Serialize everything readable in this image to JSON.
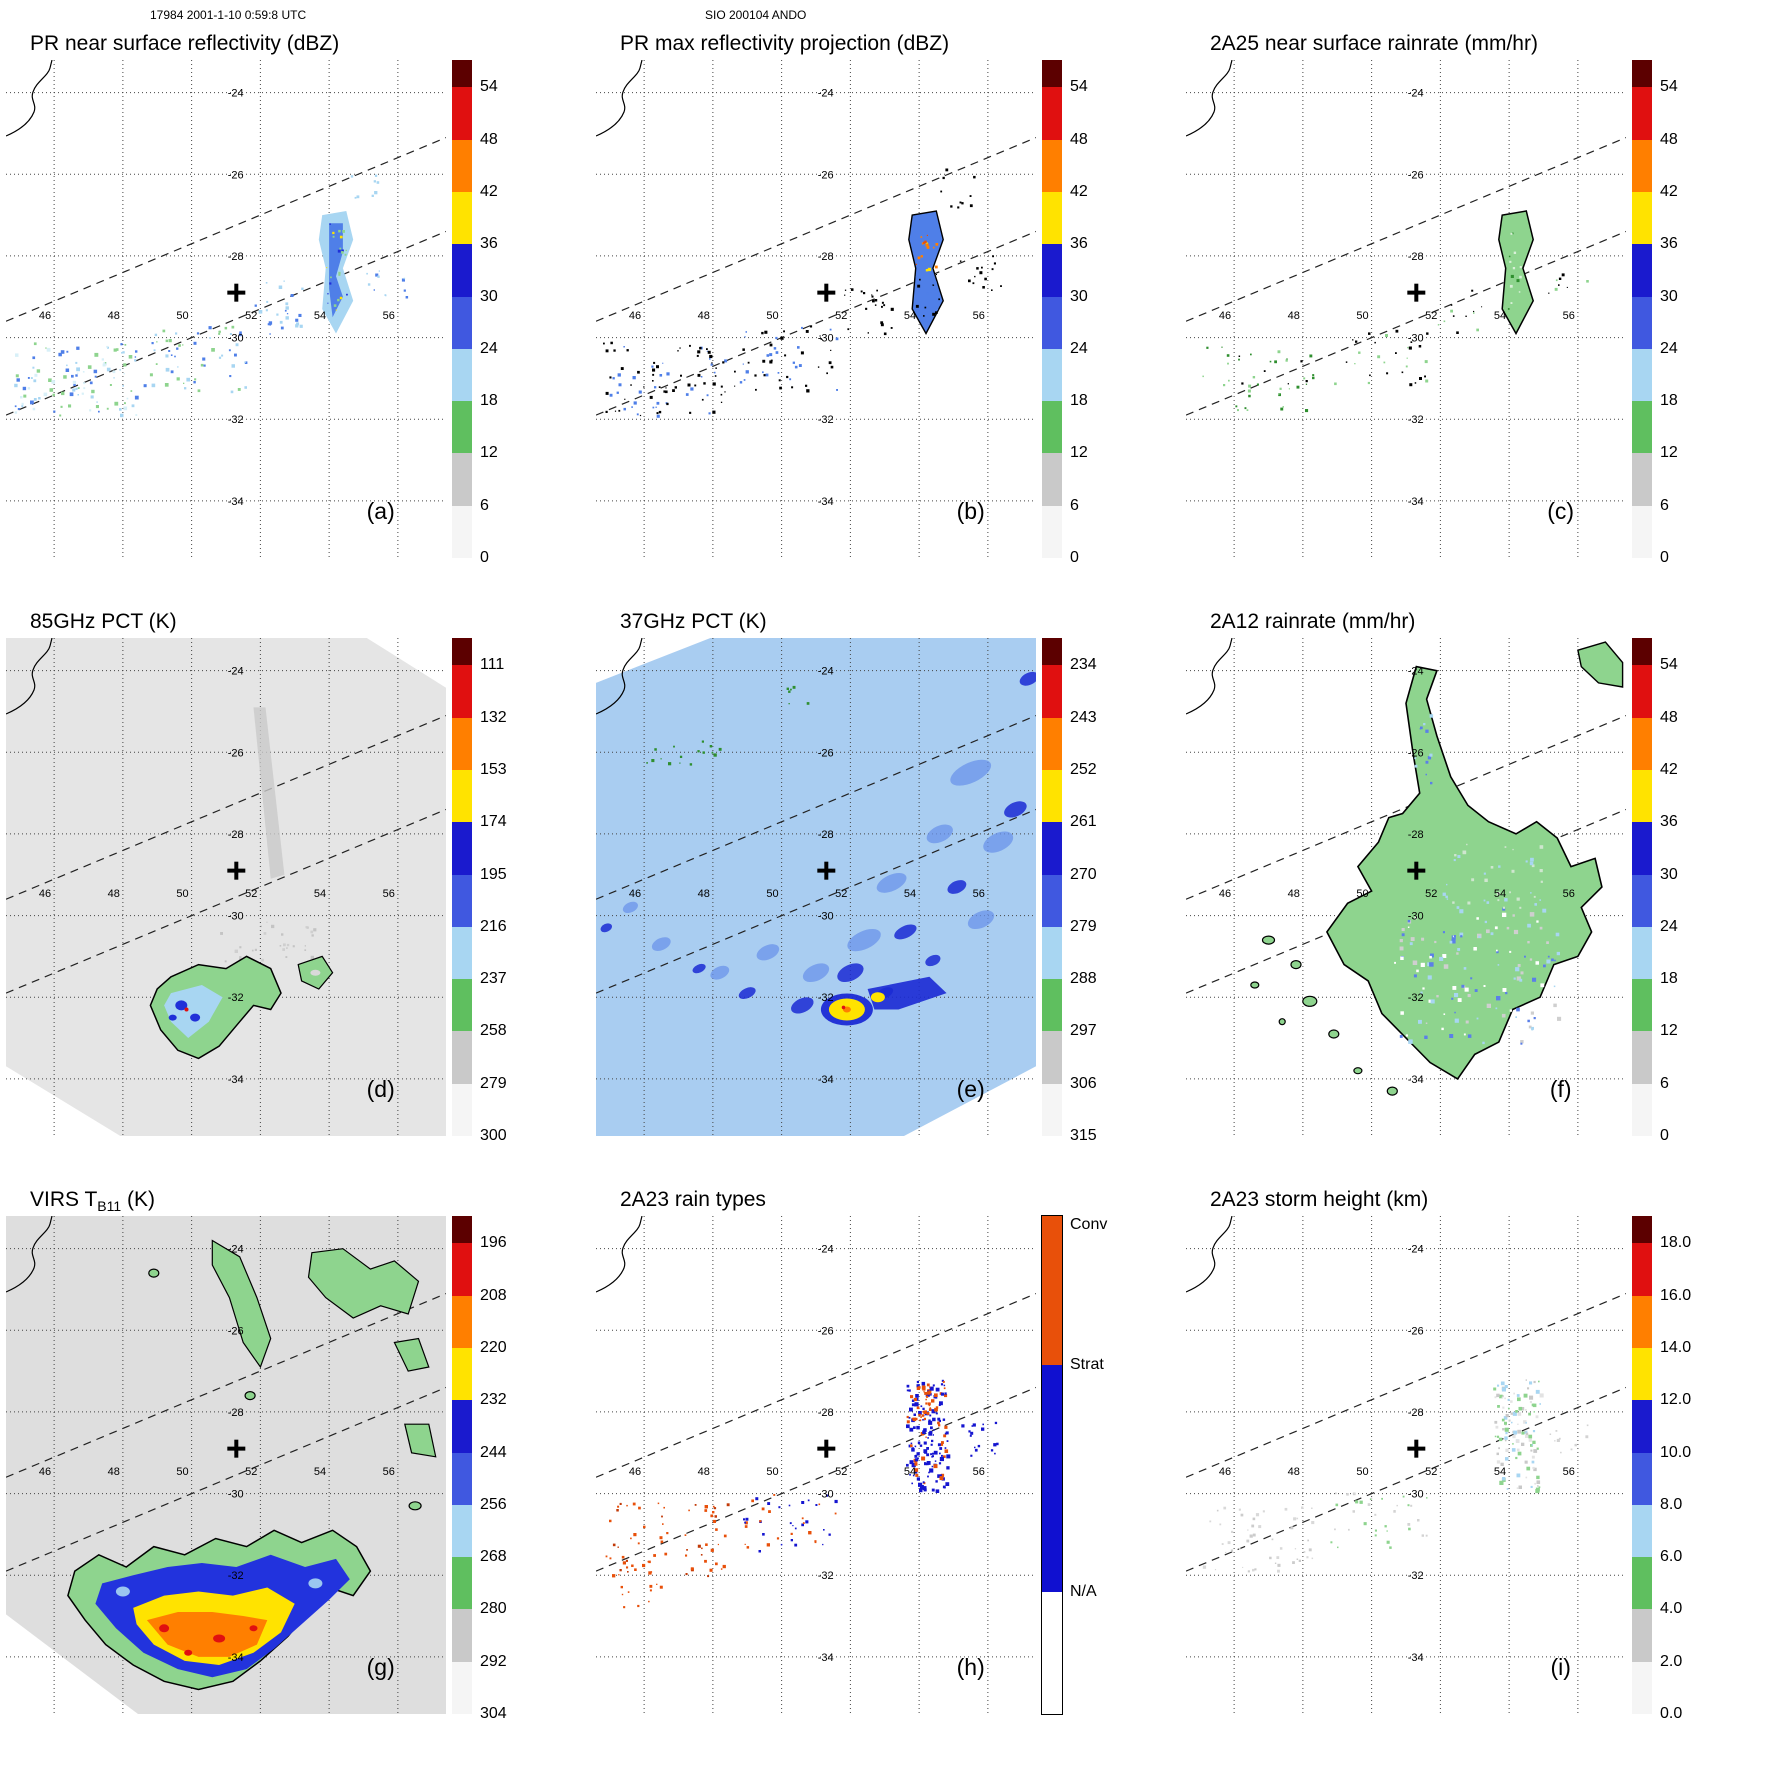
{
  "header": {
    "left": "17984 2001-1-10 0:59:8 UTC",
    "center": "SIO 200104 ANDO"
  },
  "grid": {
    "lon_labels": [
      "46",
      "48",
      "50",
      "52",
      "54",
      "56"
    ],
    "lat_labels": [
      "-24",
      "-26",
      "-28",
      "-30",
      "-32",
      "-34"
    ],
    "lons": [
      46,
      48,
      50,
      52,
      54,
      56
    ],
    "lats": [
      -24,
      -26,
      -28,
      -30,
      -32,
      -34
    ]
  },
  "palette": {
    "colorbar": {
      "cap": "#5c0000",
      "segments": [
        "#e01010",
        "#ff7f00",
        "#ffe300",
        "#1a1ace",
        "#4058e0",
        "#a8d6f2",
        "#5fbf5f",
        "#c9c9c9",
        "#f5f5f5"
      ],
      "raintype": {
        "conv": "#e8500a",
        "strat": "#1010d0",
        "na": "#ffffff"
      }
    },
    "map_colors": {
      "green": "#8ed48e",
      "dark_green": "#2f8f2f",
      "pale_blue": "#a8d6f2",
      "med_blue": "#4f7fe8",
      "deep_blue": "#2030d8",
      "yellow": "#ffe300",
      "orange": "#ff7f00",
      "red": "#e01010",
      "conv_orange": "#e8500a",
      "strat_blue": "#1515d0",
      "gray_swath": "#e5e5e5",
      "blue_swath": "#a9cdf1",
      "gray_virs": "#dedede",
      "black": "#000000"
    }
  },
  "panels": [
    {
      "id": "a",
      "letter": "(a)",
      "title": "PR near surface reflectivity (dBZ)",
      "colorbar": {
        "kind": "std",
        "labels": [
          "54",
          "48",
          "42",
          "36",
          "30",
          "24",
          "18",
          "12",
          "6",
          "0"
        ]
      }
    },
    {
      "id": "b",
      "letter": "(b)",
      "title": "PR max reflectivity projection (dBZ)",
      "colorbar": {
        "kind": "std",
        "labels": [
          "54",
          "48",
          "42",
          "36",
          "30",
          "24",
          "18",
          "12",
          "6",
          "0"
        ]
      }
    },
    {
      "id": "c",
      "letter": "(c)",
      "title": "2A25 near surface rainrate (mm/hr)",
      "colorbar": {
        "kind": "std",
        "labels": [
          "54",
          "48",
          "42",
          "36",
          "30",
          "24",
          "18",
          "12",
          "6",
          "0"
        ]
      }
    },
    {
      "id": "d",
      "letter": "(d)",
      "title": "85GHz PCT (K)",
      "colorbar": {
        "kind": "std",
        "labels": [
          "111",
          "132",
          "153",
          "174",
          "195",
          "216",
          "237",
          "258",
          "279",
          "300"
        ]
      }
    },
    {
      "id": "e",
      "letter": "(e)",
      "title": "37GHz PCT (K)",
      "colorbar": {
        "kind": "std",
        "labels": [
          "234",
          "243",
          "252",
          "261",
          "270",
          "279",
          "288",
          "297",
          "306",
          "315"
        ]
      }
    },
    {
      "id": "f",
      "letter": "(f)",
      "title": "2A12 rainrate (mm/hr)",
      "colorbar": {
        "kind": "std",
        "labels": [
          "54",
          "48",
          "42",
          "36",
          "30",
          "24",
          "18",
          "12",
          "6",
          "0"
        ]
      }
    },
    {
      "id": "g",
      "letter": "(g)",
      "title_prefix": "VIRS T",
      "title_sub": "B11",
      "title_suffix": " (K)",
      "colorbar": {
        "kind": "std",
        "labels": [
          "196",
          "208",
          "220",
          "232",
          "244",
          "256",
          "268",
          "280",
          "292",
          "304"
        ]
      }
    },
    {
      "id": "h",
      "letter": "(h)",
      "title": "2A23 rain types",
      "colorbar": {
        "kind": "raintype",
        "labels": [
          "Conv",
          "Strat",
          "N/A"
        ]
      }
    },
    {
      "id": "i",
      "letter": "(i)",
      "title": "2A23 storm height (km)",
      "colorbar": {
        "kind": "std",
        "labels": [
          "18.0",
          "16.0",
          "14.0",
          "12.0",
          "10.0",
          "8.0",
          "6.0",
          "4.0",
          "2.0",
          "0.0"
        ]
      }
    }
  ],
  "chart_data": [
    {
      "panel": "(a)",
      "type": "heatmap",
      "title": "PR near surface reflectivity (dBZ)",
      "units": "dBZ",
      "colorbar_ticks": [
        54,
        48,
        42,
        36,
        30,
        24,
        18,
        12,
        6,
        0
      ],
      "extent": {
        "lon": [
          46,
          56
        ],
        "lat": [
          -34,
          -24
        ]
      },
      "annotations": [
        "cross marker near 51.3E -28.9",
        "dashed PR swath edges",
        "coastline in upper-left"
      ],
      "description": "Scattered weak echoes (18-30 dBZ) along the narrow PR swath between 45-52E, -30 to -32; a north-south convective band of 24-36 dBZ near 54E between -27 and -30."
    },
    {
      "panel": "(b)",
      "type": "heatmap",
      "title": "PR max reflectivity projection (dBZ)",
      "units": "dBZ",
      "colorbar_ticks": [
        54,
        48,
        42,
        36,
        30,
        24,
        18,
        12,
        6,
        0
      ],
      "extent": {
        "lon": [
          46,
          56
        ],
        "lat": [
          -34,
          -24
        ]
      },
      "annotations": [
        "cross marker",
        "dashed swath edges",
        "coastline in upper-left"
      ],
      "description": "Same echo regions as (a) shown as black-outlined maxima; the band near 54E contains embedded orange/yellow cores (36-48 dBZ)."
    },
    {
      "panel": "(c)",
      "type": "heatmap",
      "title": "2A25 near surface rainrate (mm/hr)",
      "units": "mm/hr",
      "colorbar_ticks": [
        54,
        48,
        42,
        36,
        30,
        24,
        18,
        12,
        6,
        0
      ],
      "extent": {
        "lon": [
          46,
          56
        ],
        "lat": [
          -34,
          -24
        ]
      },
      "annotations": [
        "cross marker",
        "dashed swath edges",
        "coastline in upper-left"
      ],
      "description": "Light rain (green, ~6-18 mm/hr outlined in black) in the band near 54E and sparse specks along the swath."
    },
    {
      "panel": "(d)",
      "type": "heatmap",
      "title": "85GHz PCT (K)",
      "units": "K",
      "colorbar_ticks": [
        111,
        132,
        153,
        174,
        195,
        216,
        237,
        258,
        279,
        300
      ],
      "extent": {
        "lon": [
          46,
          56
        ],
        "lat": [
          -34,
          -24
        ]
      },
      "annotations": [
        "cross marker",
        "dashed PR swath edges",
        "coastline in upper-left"
      ],
      "description": "Wide TMI swath of warm PCT (gray ~260-300K) with a depressed-PCT feature near 50E -32.5 (green contour ~237K enclosing pale/deep blue ~195-216K) and a small outlined cell near 53.5E -31.5."
    },
    {
      "panel": "(e)",
      "type": "heatmap",
      "title": "37GHz PCT (K)",
      "units": "K",
      "colorbar_ticks": [
        234,
        243,
        252,
        261,
        270,
        279,
        288,
        297,
        306,
        315
      ],
      "extent": {
        "lon": [
          46,
          56
        ],
        "lat": [
          -34,
          -24
        ]
      },
      "annotations": [
        "cross marker",
        "dashed PR swath edges",
        "coastline in upper-left"
      ],
      "description": "Swath mostly pale blue (~279-288K) with deep blue patches (~270K) and a yellow minimum (~261K with orange core) near 52E -32.3; sparse green specks along the northwest edge."
    },
    {
      "panel": "(f)",
      "type": "heatmap",
      "title": "2A12 rainrate (mm/hr)",
      "units": "mm/hr",
      "colorbar_ticks": [
        54,
        48,
        42,
        36,
        30,
        24,
        18,
        12,
        6,
        0
      ],
      "extent": {
        "lon": [
          46,
          56
        ],
        "lat": [
          -34,
          -24
        ]
      },
      "annotations": [
        "cross marker",
        "dashed PR swath edges",
        "coastline in upper-left"
      ],
      "description": "Large black-outlined raining region (green ~0-6 mm/hr) covering 49-57E, -28 to -34 with a hooked arm extending to 51.5E -24; embedded pale/medium blue pixels (12-30 mm/hr); small outlined rain islands to the southwest and a patch in the upper-right corner."
    },
    {
      "panel": "(g)",
      "type": "heatmap",
      "title": "VIRS TB11 (K)",
      "units": "K",
      "colorbar_ticks": [
        196,
        208,
        220,
        232,
        244,
        256,
        268,
        280,
        292,
        304
      ],
      "extent": {
        "lon": [
          46,
          56
        ],
        "lat": [
          -34,
          -24
        ]
      },
      "annotations": [
        "cross marker",
        "dashed PR swath edges",
        "coastline in upper-left"
      ],
      "description": "Warm gray background (~280-304K) with black-contoured cold cloud patches (green ~268K) in the north and east, and a large cold storm shield in the south (blue ~244-256K surrounding yellow ~232K, orange ~220K and red cores ~208K) centered near 50E -33.5."
    },
    {
      "panel": "(h)",
      "type": "categorical-map",
      "title": "2A23 rain types",
      "units": "category",
      "categories": [
        "Conv",
        "Strat",
        "N/A"
      ],
      "extent": {
        "lon": [
          46,
          56
        ],
        "lat": [
          -34,
          -24
        ]
      },
      "annotations": [
        "cross marker",
        "dashed PR swath edges",
        "coastline in upper-left"
      ],
      "description": "Convective (orange) pixels scattered along the southwest part of the swath; the band near 54E is mostly stratiform (blue) with convective cells at its northern end."
    },
    {
      "panel": "(i)",
      "type": "heatmap",
      "title": "2A23 storm height (km)",
      "units": "km",
      "colorbar_ticks": [
        18.0,
        16.0,
        14.0,
        12.0,
        10.0,
        8.0,
        6.0,
        4.0,
        2.0,
        0.0
      ],
      "extent": {
        "lon": [
          46,
          56
        ],
        "lat": [
          -34,
          -24
        ]
      },
      "annotations": [
        "cross marker",
        "dashed PR swath edges",
        "coastline in upper-left"
      ],
      "description": "Shallow storm heights (gray ~2-4 km with green ~4-6 km pixels) in the band near 54E and faint echoes along the swath."
    }
  ]
}
